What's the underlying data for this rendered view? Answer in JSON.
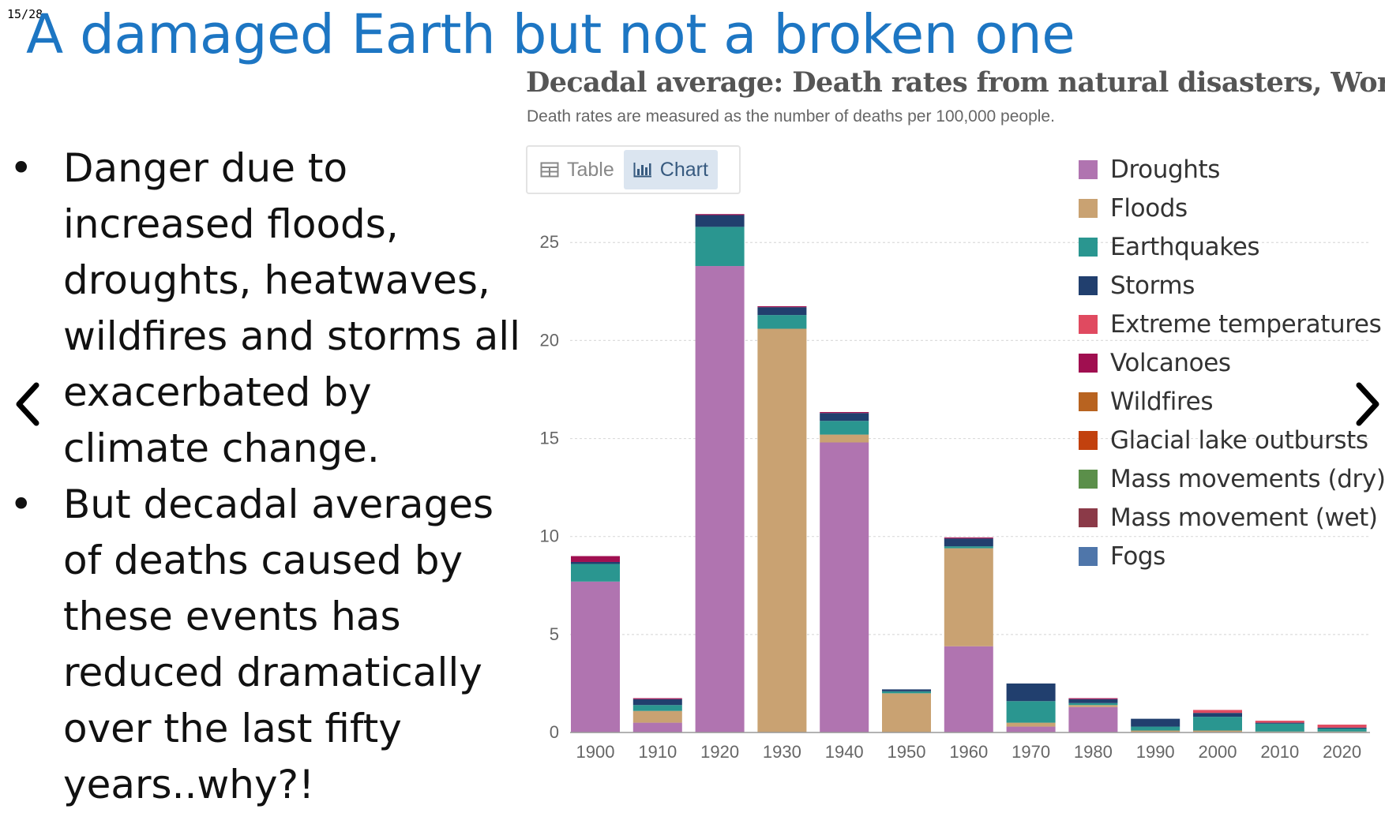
{
  "slide": {
    "counter": "15/28",
    "title": "A damaged Earth but not a broken one",
    "bullets": [
      "Danger due to increased floods, droughts, heatwaves, wildfires and storms all exacerbated by climate change.",
      "But decadal averages of deaths caused by these events  has reduced dramatically over the last fifty years..why?!"
    ],
    "bullet_symbol": "•",
    "nav": {
      "prev_icon": "chevron-left-icon",
      "next_icon": "chevron-right-icon"
    }
  },
  "chart_panel": {
    "title": "Decadal average: Death rates from natural disasters, World",
    "subtitle": "Death rates are measured as the number of deaths per 100,000 people.",
    "tabs": [
      {
        "label": "Table",
        "icon": "table-icon",
        "active": false
      },
      {
        "label": "Chart",
        "icon": "bar-chart-icon",
        "active": true
      }
    ]
  },
  "chart_data": {
    "type": "bar",
    "stacked": true,
    "title": "Decadal average: Death rates from natural disasters, World",
    "subtitle": "Death rates are measured as the number of deaths per 100,000 people.",
    "xlabel": "",
    "ylabel": "",
    "ylim": [
      0,
      26.5
    ],
    "yticks": [
      0,
      5,
      10,
      15,
      20,
      25
    ],
    "grid": true,
    "legend_position": "right",
    "categories": [
      "1900",
      "1910",
      "1920",
      "1930",
      "1940",
      "1950",
      "1960",
      "1970",
      "1980",
      "1990",
      "2000",
      "2010",
      "2020"
    ],
    "series": [
      {
        "name": "Droughts",
        "color": "#b074b0",
        "values": [
          7.7,
          0.5,
          23.8,
          0,
          14.8,
          0,
          4.4,
          0.3,
          1.3,
          0,
          0,
          0,
          0
        ]
      },
      {
        "name": "Floods",
        "color": "#c9a272",
        "values": [
          0,
          0.6,
          0,
          20.6,
          0.4,
          2.0,
          5.0,
          0.2,
          0.1,
          0.1,
          0.1,
          0.05,
          0.05
        ]
      },
      {
        "name": "Earthquakes",
        "color": "#2a9690",
        "values": [
          0.9,
          0.3,
          2.0,
          0.7,
          0.7,
          0.1,
          0.1,
          1.1,
          0.1,
          0.2,
          0.7,
          0.4,
          0.15
        ]
      },
      {
        "name": "Storms",
        "color": "#213f6e",
        "values": [
          0.1,
          0.3,
          0.6,
          0.4,
          0.4,
          0.1,
          0.4,
          0.9,
          0.2,
          0.4,
          0.2,
          0.05,
          0.05
        ]
      },
      {
        "name": "Extreme temperatures",
        "color": "#e04a60",
        "values": [
          0,
          0,
          0,
          0,
          0,
          0,
          0,
          0,
          0,
          0,
          0.15,
          0.1,
          0.15
        ]
      },
      {
        "name": "Volcanoes",
        "color": "#a00f50",
        "values": [
          0.3,
          0.05,
          0.05,
          0.05,
          0.05,
          0,
          0.05,
          0,
          0.05,
          0,
          0,
          0,
          0
        ]
      },
      {
        "name": "Wildfires",
        "color": "#b86320",
        "values": [
          0,
          0,
          0,
          0,
          0,
          0,
          0,
          0,
          0,
          0,
          0,
          0,
          0
        ]
      },
      {
        "name": "Glacial lake outbursts",
        "color": "#c2410e",
        "values": [
          0,
          0,
          0,
          0,
          0,
          0,
          0,
          0,
          0,
          0,
          0,
          0,
          0
        ]
      },
      {
        "name": "Mass movements (dry)",
        "color": "#5b8f4a",
        "values": [
          0,
          0,
          0,
          0,
          0,
          0,
          0,
          0,
          0,
          0,
          0,
          0,
          0
        ]
      },
      {
        "name": "Mass movement (wet)",
        "color": "#8b3a48",
        "values": [
          0,
          0,
          0,
          0,
          0,
          0,
          0,
          0,
          0,
          0,
          0,
          0,
          0
        ]
      },
      {
        "name": "Fogs",
        "color": "#4f76aa",
        "values": [
          0,
          0,
          0,
          0,
          0,
          0,
          0,
          0,
          0,
          0,
          0,
          0,
          0
        ]
      }
    ]
  }
}
